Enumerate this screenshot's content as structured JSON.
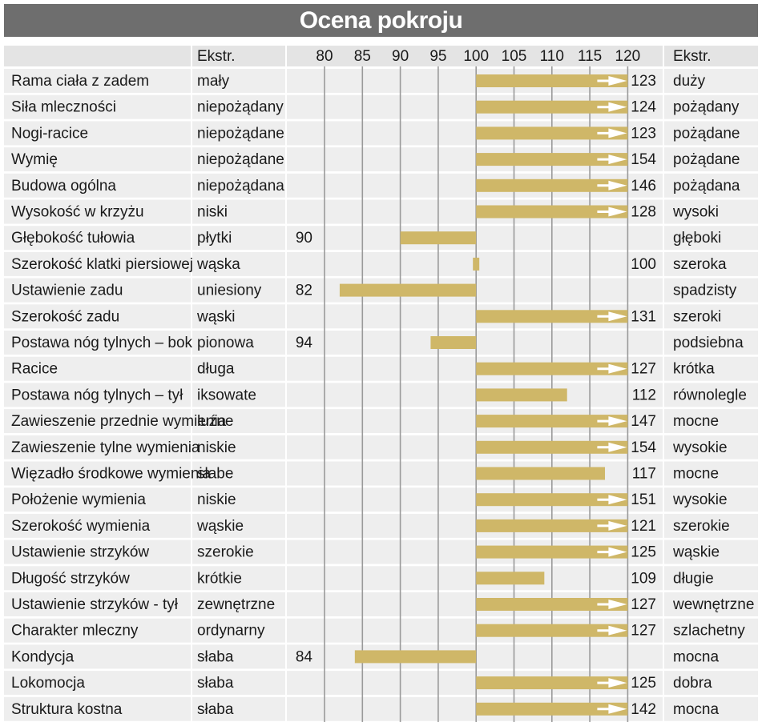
{
  "title": "Ocena pokroju",
  "colors": {
    "bar": "#cfb768",
    "arrow": "#ffffff",
    "row_band": "#eeeeee",
    "header_band": "#e4e4e4",
    "gridline": "#9a9a9a",
    "title_bg": "#6e6e6e"
  },
  "chart_data": {
    "type": "bar",
    "orientation": "horizontal",
    "baseline": 100,
    "xlim": [
      75,
      121
    ],
    "xticks": [
      80,
      85,
      90,
      95,
      100,
      105,
      110,
      115,
      120
    ],
    "header_left": "Ekstr.",
    "header_right": "Ekstr.",
    "grid": true,
    "arrow_marks_values_above": 120,
    "rows": [
      {
        "trait": "Rama ciała z zadem",
        "low": "mały",
        "high": "duży",
        "value": 123
      },
      {
        "trait": "Siła mleczności",
        "low": "niepożądany",
        "high": "pożądany",
        "value": 124
      },
      {
        "trait": "Nogi-racice",
        "low": "niepożądane",
        "high": "pożądane",
        "value": 123
      },
      {
        "trait": "Wymię",
        "low": "niepożądane",
        "high": "pożądane",
        "value": 154
      },
      {
        "trait": "Budowa ogólna",
        "low": "niepożądana",
        "high": "pożądana",
        "value": 146
      },
      {
        "trait": "Wysokość w krzyżu",
        "low": "niski",
        "high": "wysoki",
        "value": 128
      },
      {
        "trait": "Głębokość tułowia",
        "low": "płytki",
        "high": "głęboki",
        "value": 90
      },
      {
        "trait": "Szerokość klatki piersiowej",
        "low": "wąska",
        "high": "szeroka",
        "value": 100
      },
      {
        "trait": "Ustawienie zadu",
        "low": "uniesiony",
        "high": "spadzisty",
        "value": 82
      },
      {
        "trait": "Szerokość zadu",
        "low": "wąski",
        "high": "szeroki",
        "value": 131
      },
      {
        "trait": "Postawa nóg tylnych –  bok",
        "low": "pionowa",
        "high": "podsiebna",
        "value": 94
      },
      {
        "trait": "Racice",
        "low": "długa",
        "high": "krótka",
        "value": 127
      },
      {
        "trait": "Postawa nóg tylnych –  tył",
        "low": "iksowate",
        "high": "równolegle",
        "value": 112
      },
      {
        "trait": "Zawieszenie przednie wymienia",
        "low": "luźne",
        "high": "mocne",
        "value": 147
      },
      {
        "trait": "Zawieszenie tylne wymienia",
        "low": "niskie",
        "high": "wysokie",
        "value": 154
      },
      {
        "trait": "Więzadło środkowe wymienia",
        "low": "słabe",
        "high": "mocne",
        "value": 117
      },
      {
        "trait": "Położenie wymienia",
        "low": "niskie",
        "high": "wysokie",
        "value": 151
      },
      {
        "trait": "Szerokość wymienia",
        "low": "wąskie",
        "high": "szerokie",
        "value": 121
      },
      {
        "trait": "Ustawienie strzyków",
        "low": "szerokie",
        "high": "wąskie",
        "value": 125
      },
      {
        "trait": "Długość strzyków",
        "low": "krótkie",
        "high": "długie",
        "value": 109
      },
      {
        "trait": "Ustawienie strzyków - tył",
        "low": "zewnętrzne",
        "high": "wewnętrzne",
        "value": 127
      },
      {
        "trait": "Charakter mleczny",
        "low": "ordynarny",
        "high": "szlachetny",
        "value": 127
      },
      {
        "trait": "Kondycja",
        "low": "słaba",
        "high": "mocna",
        "value": 84
      },
      {
        "trait": "Lokomocja",
        "low": "słaba",
        "high": "dobra",
        "value": 125
      },
      {
        "trait": "Struktura kostna",
        "low": "słaba",
        "high": "mocna",
        "value": 142
      }
    ]
  }
}
